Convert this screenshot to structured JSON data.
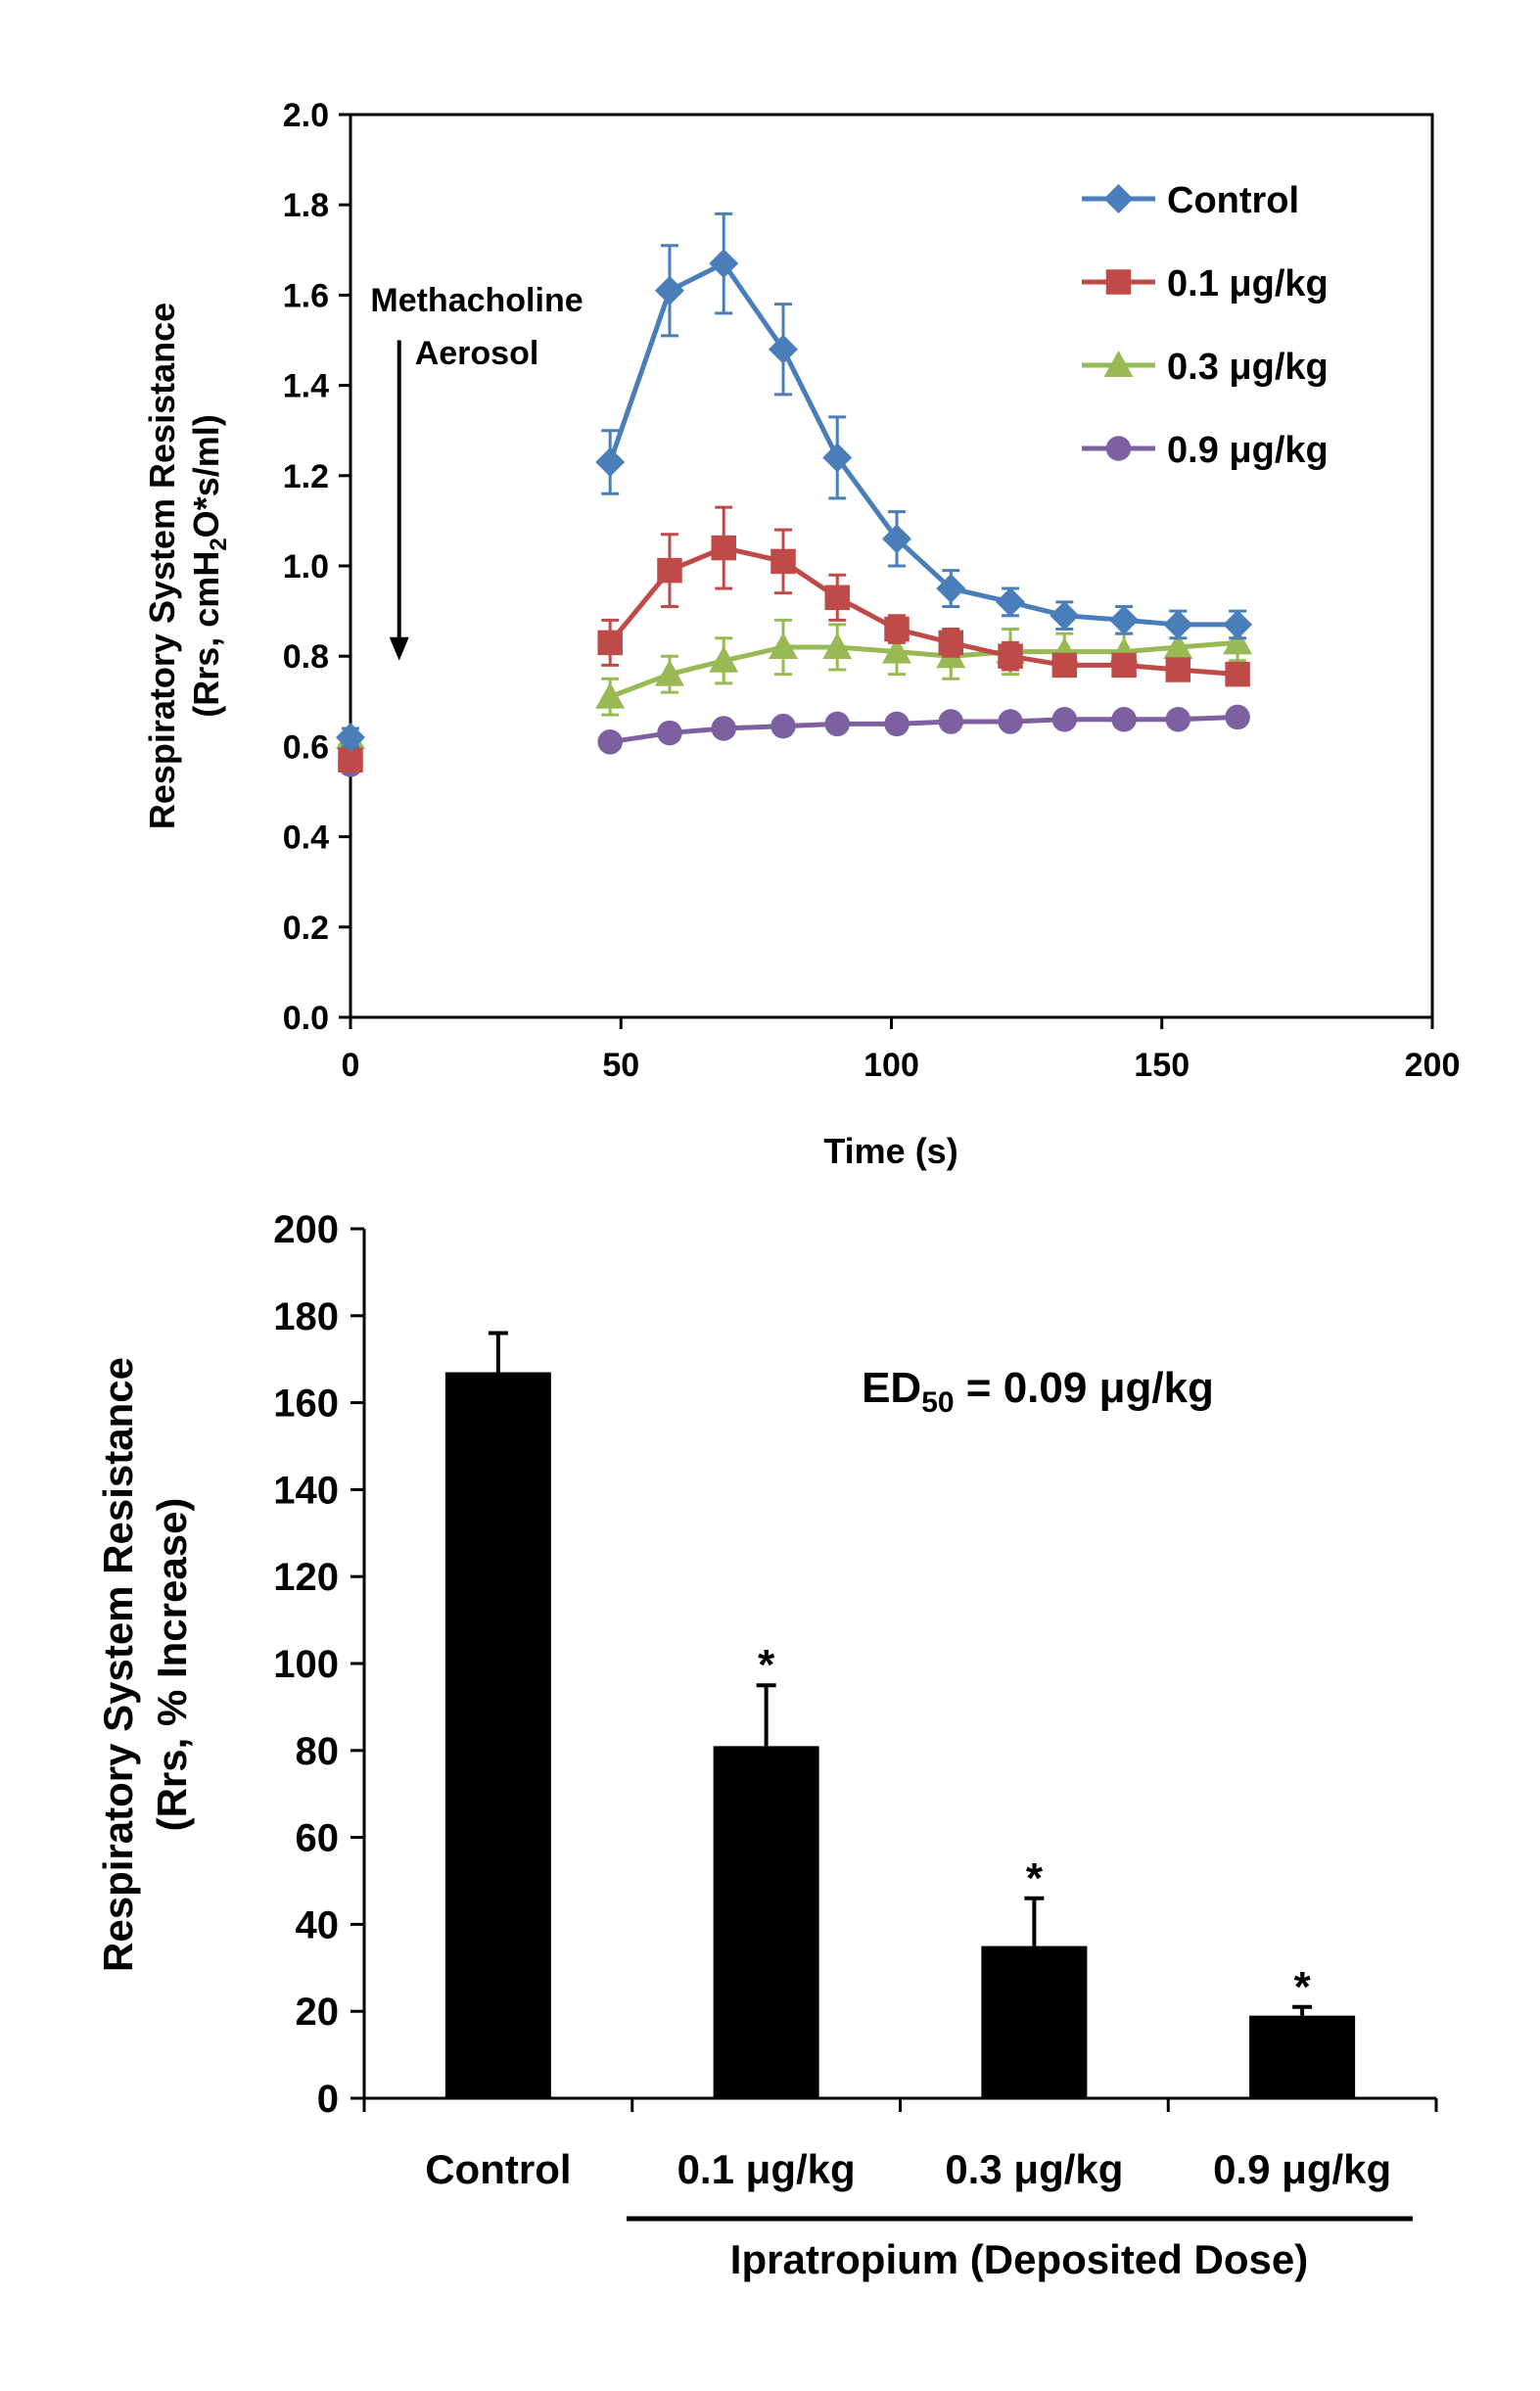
{
  "chart_data": [
    {
      "type": "line",
      "title": "",
      "xlabel": "Time (s)",
      "ylabel_line1": "Respiratory System Resistance",
      "ylabel_line2": "(Rrs, cmH2O*s/ml)",
      "xlim": [
        0,
        200
      ],
      "ylim": [
        0,
        2.0
      ],
      "xticks": [
        0,
        50,
        100,
        150,
        200
      ],
      "yticks": [
        0.0,
        0.2,
        0.4,
        0.6,
        0.8,
        1.0,
        1.2,
        1.4,
        1.6,
        1.8,
        2.0
      ],
      "grid": false,
      "legend_position": "top-right",
      "annotation": {
        "line1": "Methacholine",
        "line2": "Aerosol",
        "arrow_x": 9,
        "arrow_from_y": 1.5,
        "arrow_to_y": 0.79
      },
      "x": [
        0,
        48,
        59,
        69,
        80,
        90,
        101,
        111,
        122,
        132,
        143,
        153,
        164
      ],
      "series": [
        {
          "name": "Control",
          "marker": "diamond",
          "color": "#4a7ebb",
          "values": [
            0.62,
            1.23,
            1.61,
            1.67,
            1.48,
            1.24,
            1.06,
            0.95,
            0.92,
            0.89,
            0.88,
            0.87,
            0.87
          ],
          "errors": [
            0.02,
            0.07,
            0.1,
            0.11,
            0.1,
            0.09,
            0.06,
            0.04,
            0.03,
            0.03,
            0.03,
            0.03,
            0.03
          ]
        },
        {
          "name": "0.1 μg/kg",
          "marker": "square",
          "color": "#be4b48",
          "values": [
            0.57,
            0.83,
            0.99,
            1.04,
            1.01,
            0.93,
            0.86,
            0.83,
            0.8,
            0.78,
            0.78,
            0.77,
            0.76
          ],
          "errors": [
            0.02,
            0.05,
            0.08,
            0.09,
            0.07,
            0.05,
            0.03,
            0.03,
            0.03,
            0.02,
            0.02,
            0.02,
            0.02
          ]
        },
        {
          "name": "0.3 μg/kg",
          "marker": "triangle",
          "color": "#98b954",
          "values": [
            0.62,
            0.71,
            0.76,
            0.79,
            0.82,
            0.82,
            0.81,
            0.8,
            0.81,
            0.81,
            0.81,
            0.82,
            0.83
          ],
          "errors": [
            0.02,
            0.04,
            0.04,
            0.05,
            0.06,
            0.05,
            0.05,
            0.05,
            0.05,
            0.04,
            0.04,
            0.04,
            0.04
          ]
        },
        {
          "name": "0.9 μg/kg",
          "marker": "circle",
          "color": "#7d60a0",
          "values": [
            0.56,
            0.61,
            0.63,
            0.64,
            0.645,
            0.65,
            0.65,
            0.655,
            0.655,
            0.66,
            0.66,
            0.66,
            0.665
          ],
          "errors": [
            0.01,
            0.01,
            0.01,
            0.01,
            0.01,
            0.01,
            0.01,
            0.01,
            0.01,
            0.01,
            0.01,
            0.01,
            0.01
          ]
        }
      ]
    },
    {
      "type": "bar",
      "title": "",
      "ylabel_line1": "Respiratory System Resistance",
      "ylabel_line2": "(Rrs, % Increase)",
      "ylim": [
        0,
        200
      ],
      "yticks": [
        0,
        20,
        40,
        60,
        80,
        100,
        120,
        140,
        160,
        180,
        200
      ],
      "grid": false,
      "categories": [
        "Control",
        "0.1 μg/kg",
        "0.3 μg/kg",
        "0.9 μg/kg"
      ],
      "values": [
        167,
        81,
        35,
        19
      ],
      "errors": [
        9,
        14,
        11,
        2
      ],
      "significance": [
        "",
        "*",
        "*",
        "*"
      ],
      "bar_color": "#000000",
      "annotation": {
        "prefix": "ED",
        "subscript": "50",
        "suffix": " = 0.09 μg/kg"
      },
      "group_label": "Ipratropium (Deposited Dose)"
    }
  ]
}
